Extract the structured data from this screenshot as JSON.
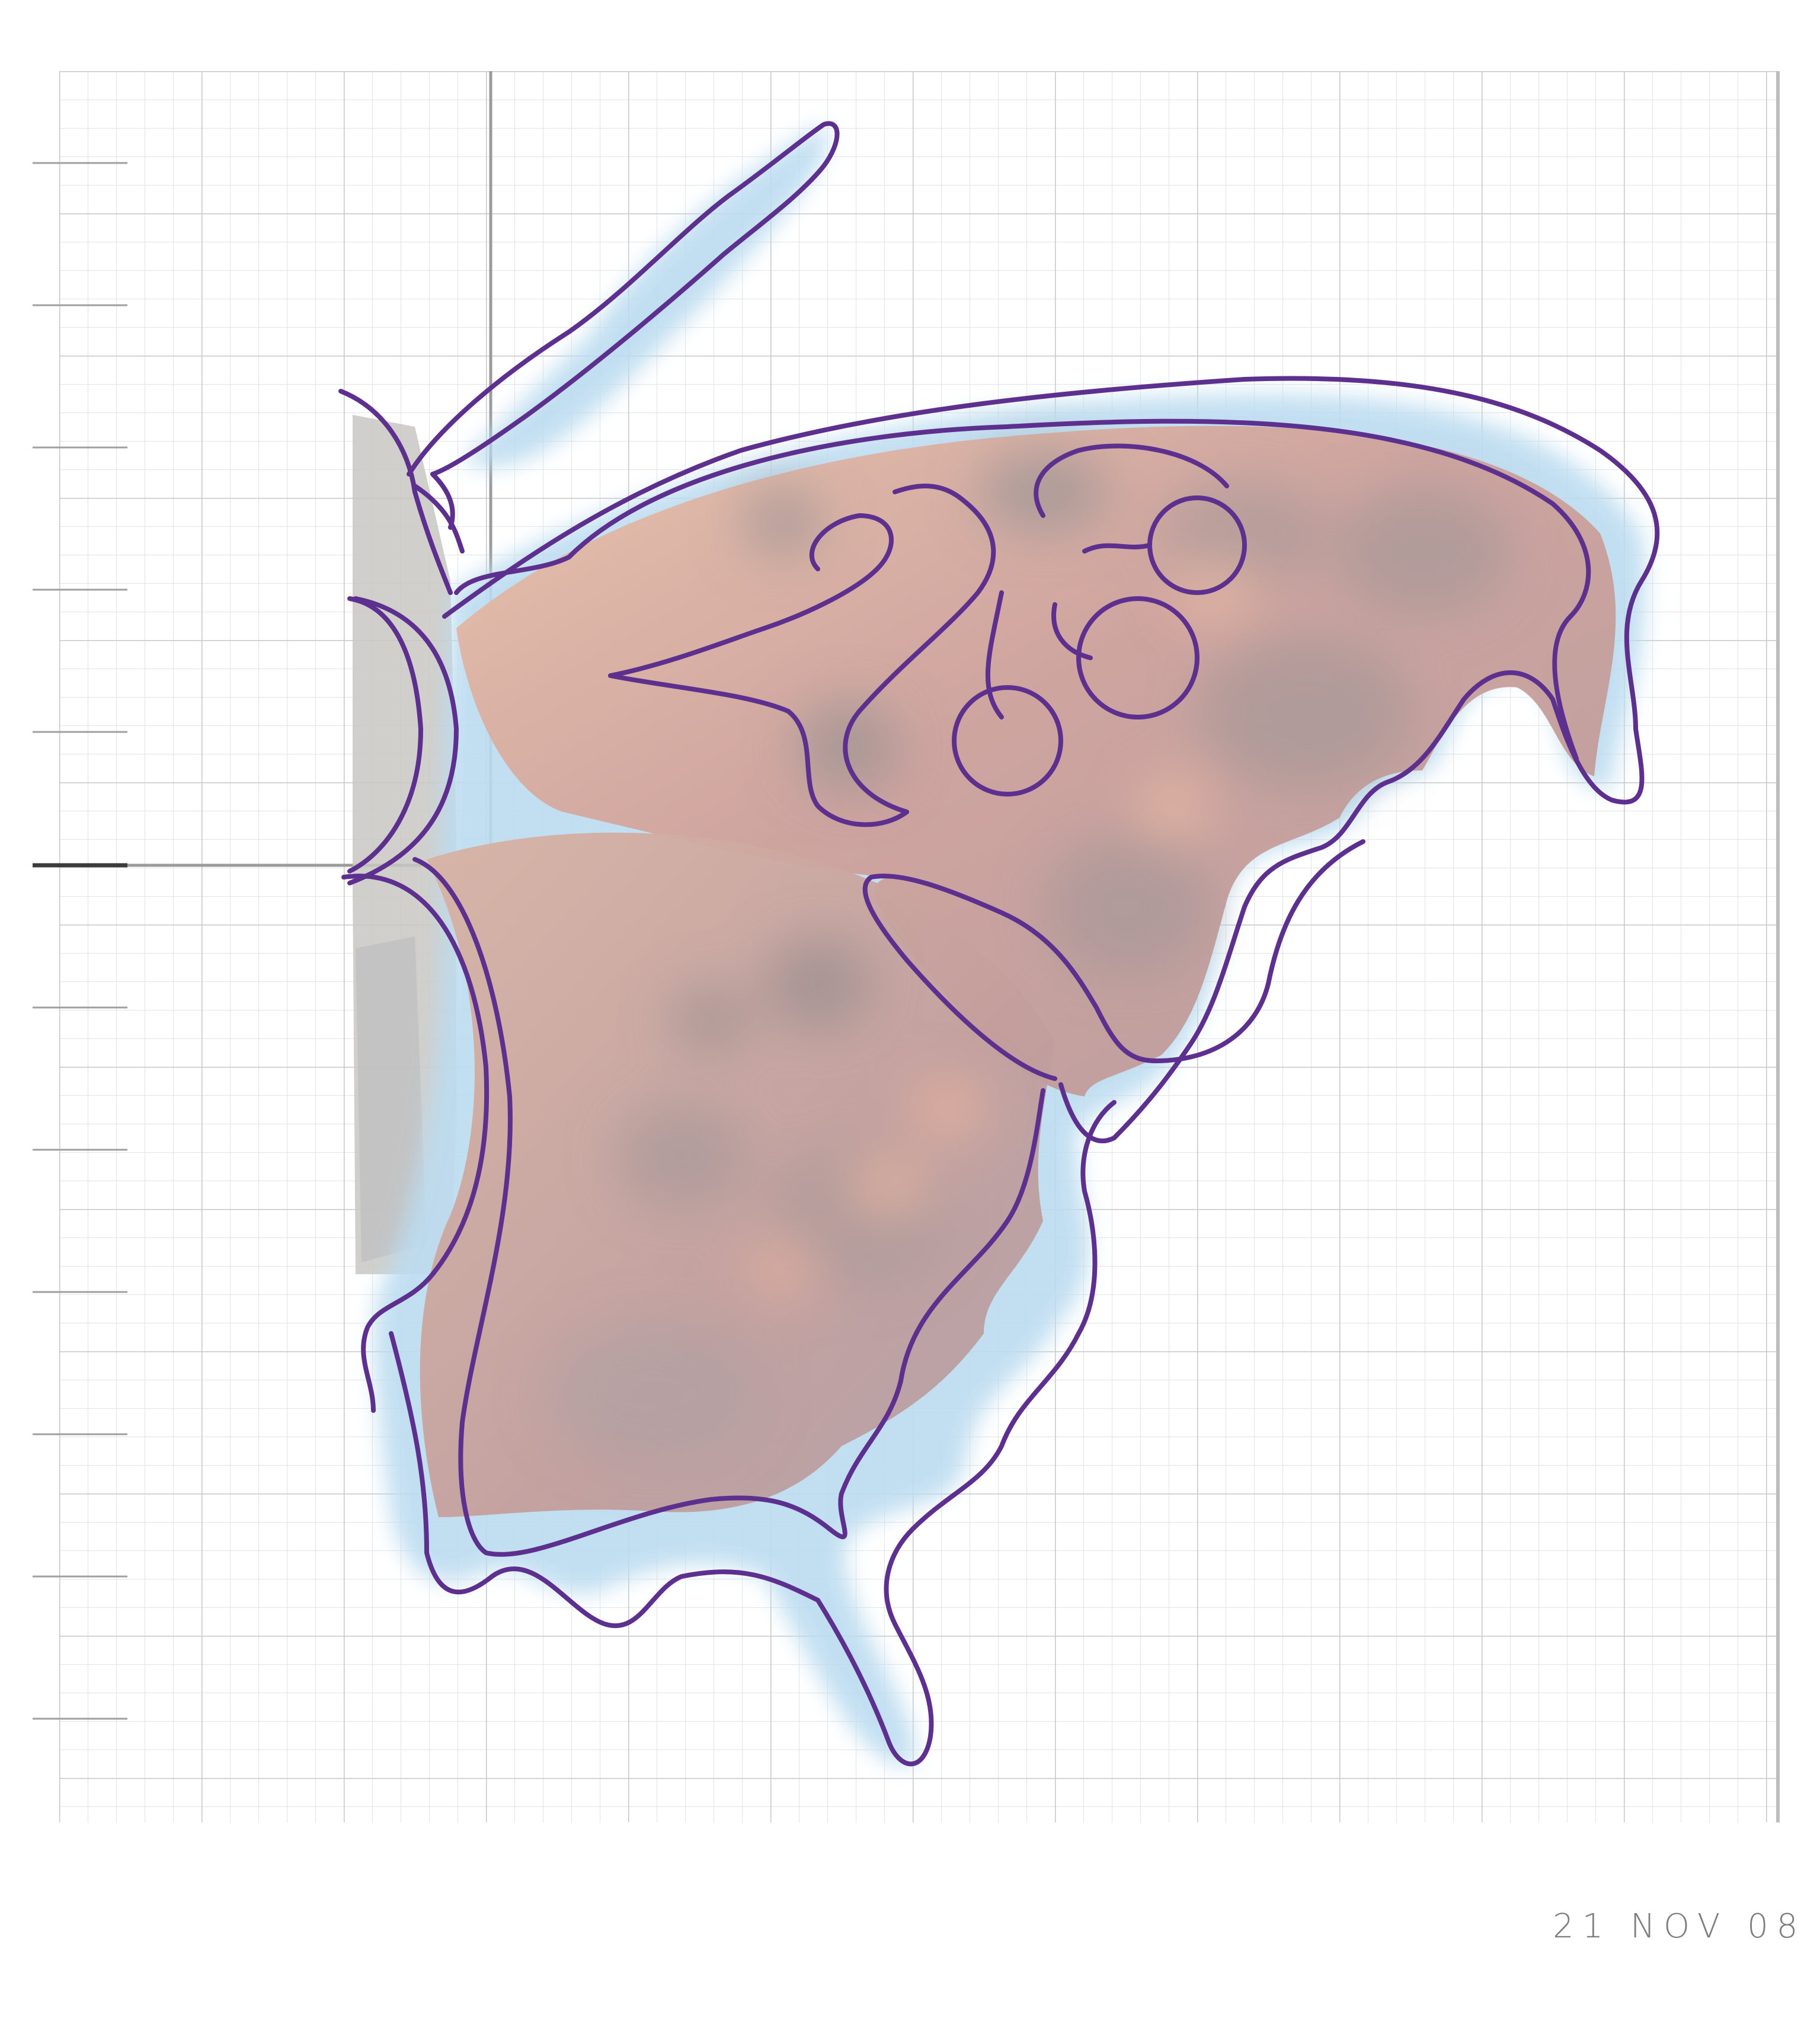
{
  "artwork": {
    "subject": "butterfly-wing-sketch",
    "date_stamp": "21 NOV 08"
  },
  "colors": {
    "paper": "#ffffff",
    "grid_minor": "#e3e3e3",
    "grid_major": "#c4c4c4",
    "grid_axis": "#8f8f8f",
    "outline": "#5d2f8e",
    "wing_fill": "#c7a49f",
    "wing_warm": "#e8b39c",
    "wing_spot": "#9f9596",
    "edge_glow": "#bcdcf0",
    "body_fill": "#c9c7c2",
    "date_ink": "#7d7d7d"
  },
  "icons": {
    "wing": "butterfly-wing-icon",
    "antenna": "antenna-icon"
  }
}
